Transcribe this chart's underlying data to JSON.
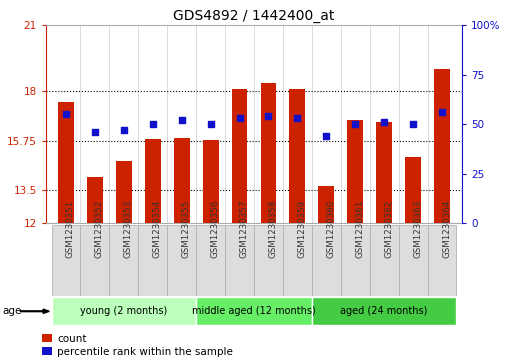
{
  "title": "GDS4892 / 1442400_at",
  "samples": [
    "GSM1230351",
    "GSM1230352",
    "GSM1230353",
    "GSM1230354",
    "GSM1230355",
    "GSM1230356",
    "GSM1230357",
    "GSM1230358",
    "GSM1230359",
    "GSM1230360",
    "GSM1230361",
    "GSM1230362",
    "GSM1230363",
    "GSM1230364"
  ],
  "counts": [
    17.5,
    14.1,
    14.85,
    15.85,
    15.9,
    15.8,
    18.1,
    18.4,
    18.1,
    13.7,
    16.7,
    16.6,
    15.0,
    19.0
  ],
  "percentiles": [
    55,
    46,
    47,
    50,
    52,
    50,
    53,
    54,
    53,
    44,
    50,
    51,
    50,
    56
  ],
  "ymin": 12,
  "ymax": 21,
  "yticks": [
    12,
    13.5,
    15.75,
    18,
    21
  ],
  "yticks_right": [
    0,
    25,
    50,
    75,
    100
  ],
  "bar_color": "#cc2200",
  "dot_color": "#1111cc",
  "bg_color": "#ffffff",
  "left_axis_color": "#cc2200",
  "right_axis_color": "#1111cc",
  "groups": [
    {
      "label": "young (2 months)",
      "start": 0,
      "end": 4,
      "color": "#bbffbb"
    },
    {
      "label": "middle aged (12 months)",
      "start": 5,
      "end": 8,
      "color": "#66ee66"
    },
    {
      "label": "aged (24 months)",
      "start": 9,
      "end": 13,
      "color": "#44cc44"
    }
  ],
  "age_label": "age",
  "legend_count": "count",
  "legend_percentile": "percentile rank within the sample",
  "tick_label_color": "#333333",
  "bar_width": 0.55,
  "dot_size": 22,
  "xtick_box_color": "#dddddd",
  "xtick_box_edge": "#aaaaaa"
}
